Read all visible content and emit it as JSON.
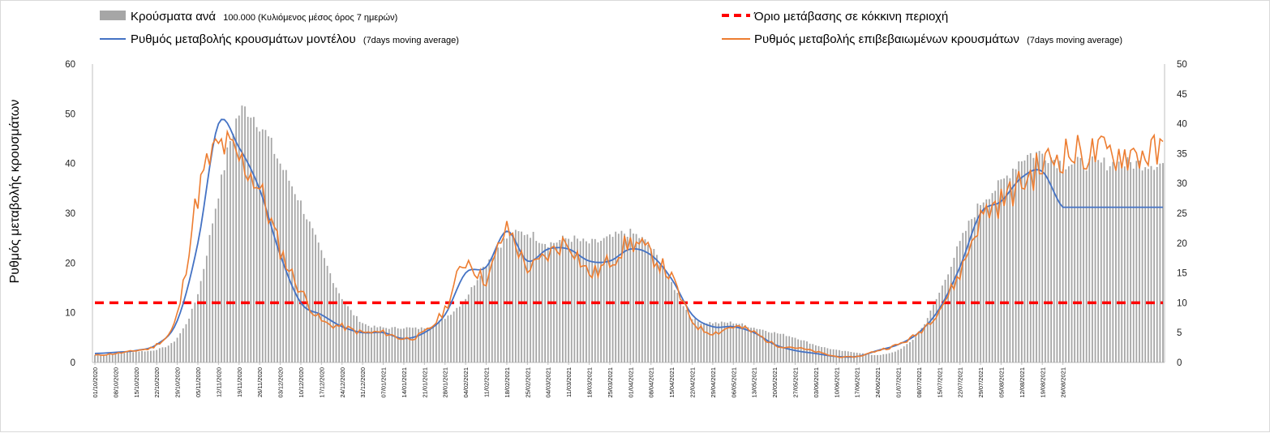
{
  "chart_data": {
    "type": "bar",
    "legend": {
      "bars": {
        "label": "Κρούσματα ανά",
        "suffix": "100.000 (Κυλιόμενος μέσος όρος 7 ημερών)",
        "color": "#a6a6a6"
      },
      "threshold": {
        "label": "Όριο μετάβασης σε κόκκινη περιοχή",
        "color": "#ff0000"
      },
      "model": {
        "label": "Ρυθμός μεταβολής κρουσμάτων μοντέλου",
        "suffix": "(7days moving average)",
        "color": "#4472c4"
      },
      "confirmed": {
        "label": "Ρυθμός μεταβολής επιβεβαιωμένων κρουσμάτων",
        "suffix": "(7days moving average)",
        "color": "#ed7d31"
      }
    },
    "ylabel": "Ρυθμός μεταβολής κρουσμάτων",
    "ylim_left": [
      0,
      60
    ],
    "ylim_right": [
      0,
      50
    ],
    "yticks_left": [
      "0",
      "10",
      "20",
      "30",
      "40",
      "50",
      "60"
    ],
    "yticks_right": [
      "0",
      "5",
      "10",
      "15",
      "20",
      "25",
      "30",
      "35",
      "40",
      "45",
      "50"
    ],
    "threshold_value_right": 10,
    "x_start": "01/10/2020",
    "date_ticks": [
      "01/10/2020",
      "08/10/2020",
      "15/10/2020",
      "22/10/2020",
      "29/10/2020",
      "05/11/2020",
      "12/11/2020",
      "19/11/2020",
      "26/11/2020",
      "03/12/2020",
      "10/12/2020",
      "17/12/2020",
      "24/12/2020",
      "31/12/2020",
      "07/01/2021",
      "14/01/2021",
      "21/01/2021",
      "28/01/2021",
      "04/02/2021",
      "11/02/2021",
      "18/02/2021",
      "25/02/2021",
      "04/03/2021",
      "11/03/2021",
      "18/03/2021",
      "25/03/2021",
      "01/04/2021",
      "08/04/2021",
      "15/04/2021",
      "22/04/2021",
      "29/04/2021",
      "06/05/2021",
      "13/05/2021",
      "20/05/2021",
      "27/05/2021",
      "03/06/2021",
      "10/06/2021",
      "17/06/2021",
      "24/06/2021",
      "01/07/2021",
      "08/07/2021",
      "15/07/2021",
      "22/07/2021",
      "29/07/2021",
      "05/08/2021",
      "12/08/2021",
      "19/08/2021",
      "26/08/2021"
    ],
    "series": [
      {
        "name": "Κρούσματα ανά 100.000 (Κυλιόμενος μέσος όρος 7 ημερών)",
        "axis": "left",
        "weekly_values": [
          1.5,
          1.8,
          2.2,
          2.6,
          5,
          14,
          34,
          50,
          48,
          40,
          32,
          22,
          13,
          8,
          7,
          7,
          7,
          9,
          13,
          20,
          25,
          26,
          24,
          25,
          24,
          25,
          26,
          23,
          16,
          9,
          8,
          8,
          7,
          6,
          5,
          3.5,
          2.5,
          2,
          1.5,
          2.5,
          6,
          14,
          24,
          32,
          36,
          41,
          42,
          40
        ]
      },
      {
        "name": "Ρυθμός μεταβολής κρουσμάτων μοντέλου",
        "axis": "right",
        "weekly_values": [
          1.5,
          1.7,
          2,
          3,
          7,
          20,
          40,
          36,
          29,
          18,
          10,
          8,
          6,
          5,
          5,
          4,
          5,
          8,
          15,
          16,
          22,
          17,
          19,
          19,
          17,
          17,
          19,
          18,
          14,
          8,
          6,
          6,
          5,
          3,
          2,
          1.5,
          1,
          1,
          2,
          3,
          5,
          9,
          16,
          25,
          27,
          31,
          32,
          26
        ]
      },
      {
        "name": "Ρυθμός μεταβολής επιβεβαιωμένων κρουσμάτων",
        "axis": "right",
        "weekly_values": [
          1.2,
          1.5,
          2,
          3,
          8,
          28,
          36,
          34,
          29,
          19,
          12,
          7,
          6,
          5,
          5,
          4,
          5,
          9,
          17,
          14,
          22,
          16,
          18,
          20,
          15,
          17,
          20,
          18,
          14,
          7,
          5,
          6,
          5,
          3,
          2.5,
          1.8,
          1,
          1,
          2,
          3,
          5,
          9,
          15,
          24,
          27,
          30,
          33,
          35
        ]
      }
    ]
  }
}
